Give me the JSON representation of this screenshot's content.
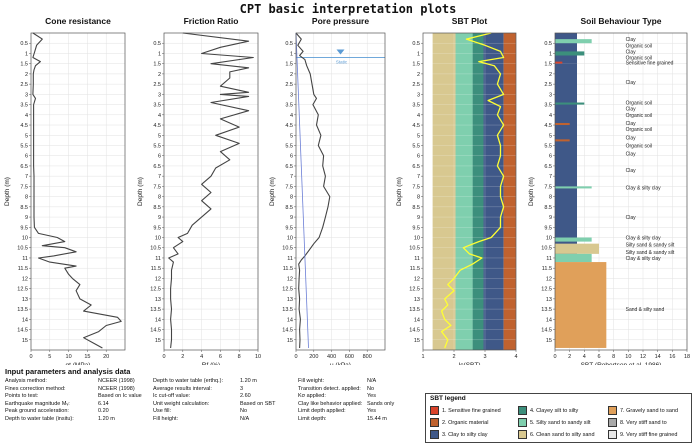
{
  "page_title": "CPT basic interpretation plots",
  "chart_data": [
    {
      "type": "line",
      "title": "Cone resistance",
      "xlabel": "qt (MPa)",
      "ylabel": "Depth (m)",
      "xlim": [
        0,
        25
      ],
      "xticks": [
        0,
        5,
        10,
        15,
        20
      ],
      "ylim": [
        0,
        15.5
      ],
      "depth_ticks": [
        "0.5",
        "1",
        "1.5",
        "2",
        "2.5",
        "3",
        "3.5",
        "4",
        "4.5",
        "5",
        "5.5",
        "6",
        "6.5",
        "7",
        "7.5",
        "8",
        "8.5",
        "9",
        "9.5",
        "10",
        "10.5",
        "11",
        "11.5",
        "12",
        "12.5",
        "13",
        "13.5",
        "14",
        "14.5",
        "15"
      ],
      "series": [
        {
          "depth": [
            0,
            0.3,
            0.6,
            0.9,
            1.2,
            1.4,
            1.6,
            1.8,
            2,
            2.5,
            3,
            3.2,
            3.5,
            4,
            4.5,
            5,
            5.5,
            6,
            6.5,
            7,
            7.5,
            8,
            8.5,
            9,
            9.5,
            9.8,
            10,
            10.2,
            10.4,
            10.5,
            10.7,
            10.9,
            11,
            11.2,
            11.4,
            11.5,
            11.8,
            12,
            12.3,
            12.6,
            13,
            13.3,
            13.6,
            13.9,
            14.1,
            14.3,
            14.6,
            14.9,
            15.2,
            15.4
          ],
          "x": [
            0.5,
            3,
            1.5,
            1,
            0.5,
            2.5,
            1.2,
            0.8,
            0.6,
            0.6,
            0.5,
            1.2,
            0.7,
            0.7,
            0.7,
            0.7,
            0.7,
            0.7,
            0.7,
            0.8,
            0.8,
            0.8,
            0.8,
            0.8,
            0.9,
            2,
            7,
            9,
            3,
            9,
            12,
            6,
            2,
            5,
            12,
            9,
            10,
            11,
            13,
            12,
            13,
            16,
            14,
            23,
            24,
            20,
            18,
            14,
            17,
            19
          ]
        }
      ]
    },
    {
      "type": "line",
      "title": "Friction Ratio",
      "xlabel": "Rf (%)",
      "ylabel": "Depth (m)",
      "xlim": [
        0,
        10
      ],
      "xticks": [
        0,
        2,
        4,
        6,
        8,
        10
      ],
      "ylim": [
        0,
        15.5
      ],
      "depth_ticks": [
        "0.5",
        "1",
        "1.5",
        "2",
        "2.5",
        "3",
        "3.5",
        "4",
        "4.5",
        "5",
        "5.5",
        "6",
        "6.5",
        "7",
        "7.5",
        "8",
        "8.5",
        "9",
        "9.5",
        "10",
        "10.5",
        "11",
        "11.5",
        "12",
        "12.5",
        "13",
        "13.5",
        "14",
        "14.5",
        "15"
      ],
      "series": [
        {
          "depth": [
            0,
            0.4,
            0.7,
            1,
            1.2,
            1.5,
            1.7,
            1.9,
            2.2,
            2.6,
            2.9,
            3,
            3.1,
            3.4,
            3.8,
            4.2,
            4.6,
            5,
            5.4,
            5.8,
            6.2,
            6.6,
            7,
            7.4,
            7.8,
            8.2,
            8.6,
            9,
            9.4,
            9.8,
            10,
            10.2,
            10.5,
            10.8,
            11,
            11.2,
            11.6,
            12,
            12.5,
            13,
            13.5,
            14,
            14.5,
            15,
            15.4
          ],
          "x": [
            2,
            9,
            6,
            4,
            9.5,
            5,
            9,
            7,
            7,
            6,
            9,
            6,
            9,
            5,
            9,
            6,
            8,
            5.5,
            8,
            6,
            7,
            5.5,
            5,
            4,
            5,
            4,
            5,
            4,
            3,
            2.5,
            1.5,
            2,
            1,
            1.5,
            0.5,
            1,
            0.8,
            0.8,
            0.7,
            0.7,
            0.8,
            0.7,
            0.8,
            0.8,
            0.7
          ]
        }
      ]
    },
    {
      "type": "line",
      "title": "Pore pressure",
      "xlabel": "u (kPa)",
      "ylabel": "Depth (m)",
      "xlim": [
        0,
        1000
      ],
      "xticks": [
        0,
        200,
        400,
        600,
        800
      ],
      "ylim": [
        0,
        15.5
      ],
      "water_level_depth": 1.2,
      "water_label": "Static",
      "depth_ticks": [
        "0.5",
        "1",
        "1.5",
        "2",
        "2.5",
        "3",
        "3.5",
        "4",
        "4.5",
        "5",
        "5.5",
        "6",
        "6.5",
        "7",
        "7.5",
        "8",
        "8.5",
        "9",
        "9.5",
        "10",
        "10.5",
        "11",
        "11.5",
        "12",
        "12.5",
        "13",
        "13.5",
        "14",
        "14.5",
        "15"
      ],
      "series": [
        {
          "depth": [
            0,
            0.3,
            0.6,
            0.9,
            1.1,
            1.3,
            1.6,
            2,
            2.5,
            3,
            3.2,
            3.5,
            4,
            4.5,
            5,
            5.5,
            6,
            6.5,
            7,
            7.5,
            8,
            8.5,
            9,
            9.5,
            10,
            10.3,
            10.6,
            10.9,
            11.1,
            11.3,
            11.6,
            12,
            12.5,
            13,
            13.5,
            14,
            14.5,
            15,
            15.4
          ],
          "x": [
            0,
            60,
            20,
            80,
            40,
            100,
            120,
            160,
            180,
            200,
            230,
            190,
            250,
            230,
            280,
            250,
            310,
            300,
            330,
            310,
            380,
            360,
            330,
            300,
            260,
            200,
            150,
            100,
            60,
            30,
            40,
            35,
            30,
            40,
            35,
            50,
            40,
            45,
            40
          ]
        },
        {
          "depth": [
            0,
            15.4
          ],
          "x": [
            0,
            140
          ]
        }
      ]
    },
    {
      "type": "line",
      "title": "SBT Plot",
      "xlabel": "Ic(SBT)",
      "ylabel": "Depth (m)",
      "xlim": [
        1,
        4
      ],
      "xticks": [
        1,
        2,
        3,
        4
      ],
      "ylim": [
        0,
        15.5
      ],
      "depth_ticks": [
        "0.5",
        "1",
        "1.5",
        "2",
        "2.5",
        "3",
        "3.5",
        "4",
        "4.5",
        "5",
        "5.5",
        "6",
        "6.5",
        "7",
        "7.5",
        "8",
        "8.5",
        "9",
        "9.5",
        "10",
        "10.5",
        "11",
        "11.5",
        "12",
        "12.5",
        "13",
        "13.5",
        "14",
        "14.5",
        "15"
      ],
      "zones": [
        {
          "from": 1.31,
          "to": 2.05,
          "zone": 6
        },
        {
          "from": 2.05,
          "to": 2.6,
          "zone": 5
        },
        {
          "from": 2.6,
          "to": 2.95,
          "zone": 4
        },
        {
          "from": 2.95,
          "to": 3.6,
          "zone": 3
        },
        {
          "from": 3.6,
          "to": 4,
          "zone": 2
        }
      ],
      "series": [
        {
          "depth": [
            0,
            0.3,
            0.6,
            0.9,
            1.2,
            1.4,
            1.6,
            2,
            2.5,
            3,
            3.3,
            3.6,
            4,
            4.5,
            5,
            5.5,
            6,
            6.5,
            7,
            7.5,
            8,
            8.5,
            9,
            9.5,
            10,
            10.2,
            10.5,
            10.8,
            11,
            11.3,
            11.6,
            12,
            12.3,
            12.6,
            13,
            13.3,
            13.6,
            14,
            14.3,
            14.6,
            15,
            15.4
          ],
          "x": [
            3.2,
            2.4,
            3.0,
            3.5,
            3.6,
            2.8,
            3.3,
            3.5,
            3.4,
            3.6,
            3.1,
            3.5,
            3.4,
            3.6,
            3.4,
            3.5,
            3.5,
            3.4,
            3.6,
            3.5,
            3.5,
            3.6,
            3.5,
            3.5,
            3.2,
            2.8,
            2.3,
            2.5,
            2.9,
            2.6,
            2.2,
            2.0,
            1.8,
            2.0,
            1.7,
            1.8,
            1.6,
            1.7,
            1.9,
            1.6,
            1.8,
            1.7
          ]
        }
      ]
    },
    {
      "type": "bar",
      "title": "Soil Behaviour Type",
      "xlabel": "SBT (Robertson et al. 1986)",
      "ylabel": "Depth (m)",
      "xlim": [
        0,
        18
      ],
      "xticks": [
        0,
        2,
        4,
        6,
        8,
        10,
        12,
        14,
        16,
        18
      ],
      "ylim": [
        0,
        15.5
      ],
      "depth_ticks": [
        "0.5",
        "1",
        "1.5",
        "2",
        "2.5",
        "3",
        "3.5",
        "4",
        "4.5",
        "5",
        "5.5",
        "6",
        "6.5",
        "7",
        "7.5",
        "8",
        "8.5",
        "9",
        "9.5",
        "10",
        "10.5",
        "11",
        "11.5",
        "12",
        "12.5",
        "13",
        "13.5",
        "14",
        "14.5",
        "15"
      ],
      "layers": [
        {
          "top": 0,
          "bottom": 1.5,
          "sbt": 3
        },
        {
          "top": 0.3,
          "bottom": 0.5,
          "sbt": 5
        },
        {
          "top": 0.9,
          "bottom": 1.1,
          "sbt": 4
        },
        {
          "top": 1.4,
          "bottom": 1.5,
          "sbt": 1
        },
        {
          "top": 1.5,
          "bottom": 11.2,
          "sbt": 3
        },
        {
          "top": 3.4,
          "bottom": 3.5,
          "sbt": 4
        },
        {
          "top": 4.4,
          "bottom": 4.5,
          "sbt": 2
        },
        {
          "top": 5.2,
          "bottom": 5.3,
          "sbt": 2
        },
        {
          "top": 7.5,
          "bottom": 7.6,
          "sbt": 5
        },
        {
          "top": 10.0,
          "bottom": 10.2,
          "sbt": 5
        },
        {
          "top": 10.3,
          "bottom": 10.8,
          "sbt": 6
        },
        {
          "top": 10.8,
          "bottom": 11.2,
          "sbt": 5
        },
        {
          "top": 11.2,
          "bottom": 15.4,
          "sbt": 7
        }
      ],
      "labels": [
        {
          "depth": 0.3,
          "text": "Clay"
        },
        {
          "depth": 0.6,
          "text": "Organic soil"
        },
        {
          "depth": 0.9,
          "text": "Clay"
        },
        {
          "depth": 1.2,
          "text": "Organic soil"
        },
        {
          "depth": 1.45,
          "text": "Sensitive fine grained"
        },
        {
          "depth": 2.4,
          "text": "Clay"
        },
        {
          "depth": 3.4,
          "text": "Organic soil"
        },
        {
          "depth": 3.7,
          "text": "Clay"
        },
        {
          "depth": 4.0,
          "text": "Organic soil"
        },
        {
          "depth": 4.4,
          "text": "Clay"
        },
        {
          "depth": 4.7,
          "text": "Organic soil"
        },
        {
          "depth": 5.1,
          "text": "Clay"
        },
        {
          "depth": 5.5,
          "text": "Organic soil"
        },
        {
          "depth": 5.9,
          "text": "Clay"
        },
        {
          "depth": 6.7,
          "text": "Clay"
        },
        {
          "depth": 7.55,
          "text": "Clay & silty clay"
        },
        {
          "depth": 9.0,
          "text": "Clay"
        },
        {
          "depth": 10.0,
          "text": "Clay & silty clay"
        },
        {
          "depth": 10.35,
          "text": "Silty sand & sandy silt"
        },
        {
          "depth": 10.7,
          "text": "Silty sand & sandy silt"
        },
        {
          "depth": 11.0,
          "text": "Clay & silty clay"
        },
        {
          "depth": 13.5,
          "text": "Sand & silty sand"
        }
      ]
    }
  ],
  "params": {
    "title": "Input parameters and analysis data",
    "col1": [
      {
        "label": "Analysis method:",
        "value": "NCEER (1998)"
      },
      {
        "label": "Fines correction method:",
        "value": "NCEER (1998)"
      },
      {
        "label": "Points to test:",
        "value": "Based on Ic value"
      },
      {
        "label": "Earthquake magnitude Mᵥ:",
        "value": "6.14"
      },
      {
        "label": "Peak ground acceleration:",
        "value": "0.20"
      },
      {
        "label": "Depth to water table (insitu):",
        "value": "1.20 m"
      }
    ],
    "col2": [
      {
        "label": "Depth to water table (erthq.):",
        "value": "1.20 m"
      },
      {
        "label": "Average results interval:",
        "value": "3"
      },
      {
        "label": "Ic cut-off value:",
        "value": "2.60"
      },
      {
        "label": "Unit weight calculation:",
        "value": "Based on SBT"
      },
      {
        "label": "Use fill:",
        "value": "No"
      },
      {
        "label": "Fill height:",
        "value": "N/A"
      }
    ],
    "col3": [
      {
        "label": "Fill weight:",
        "value": "N/A"
      },
      {
        "label": "Transition detect. applied:",
        "value": "No"
      },
      {
        "label": "Kσ applied:",
        "value": "Yes"
      },
      {
        "label": "Clay like behavior applied:",
        "value": "Sands only"
      },
      {
        "label": "Limit depth applied:",
        "value": "Yes"
      },
      {
        "label": "Limit depth:",
        "value": "15.44 m"
      }
    ]
  },
  "sbt_legend": {
    "title": "SBT legend",
    "items": [
      {
        "text": "1. Sensitive fine grained",
        "color": "#d9432b"
      },
      {
        "text": "2. Organic material",
        "color": "#c0622f"
      },
      {
        "text": "3. Clay to silty clay",
        "color": "#3f5888"
      },
      {
        "text": "4. Clayey silt to silty",
        "color": "#3c8f7c"
      },
      {
        "text": "5. Silty sand to sandy silt",
        "color": "#7fcfae"
      },
      {
        "text": "6. Clean sand to silty sand",
        "color": "#d8c890"
      },
      {
        "text": "7. Gravely sand to sand",
        "color": "#e0a05a"
      },
      {
        "text": "8. Very stiff sand to",
        "color": "#a9a9a9"
      },
      {
        "text": "9. Very stiff fine grained",
        "color": "#e8e8e8"
      }
    ]
  },
  "colors": {
    "line": "#444444",
    "ic_line": "#ffff33",
    "water": "#5b9bd5",
    "trend": "#6c7fd6"
  }
}
